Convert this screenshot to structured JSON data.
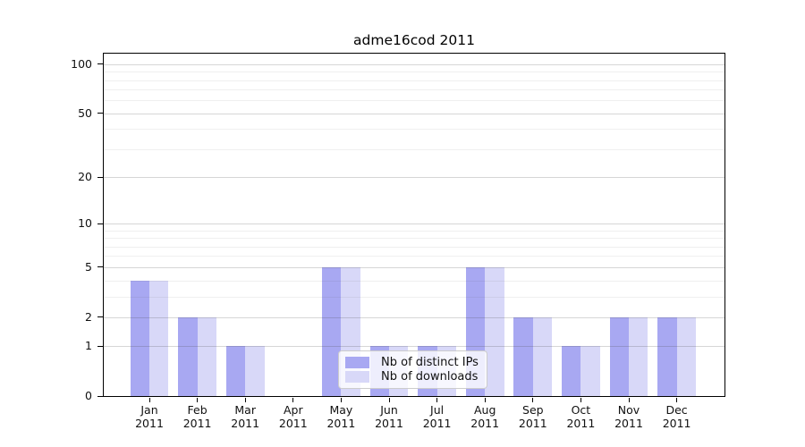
{
  "chart_data": {
    "type": "bar",
    "title": "adme16cod 2011",
    "categories": [
      "Jan",
      "Feb",
      "Mar",
      "Apr",
      "May",
      "Jun",
      "Jul",
      "Aug",
      "Sep",
      "Oct",
      "Nov",
      "Dec"
    ],
    "x_tick_second_line": "2011",
    "series": [
      {
        "name": "Nb of distinct IPs",
        "color": "#a8a8f2",
        "values": [
          4,
          2,
          1,
          0,
          5,
          1,
          1,
          5,
          2,
          1,
          2,
          2
        ]
      },
      {
        "name": "Nb of downloads",
        "color": "#d8d8f8",
        "values": [
          4,
          2,
          1,
          0,
          5,
          1,
          1,
          5,
          2,
          1,
          2,
          2
        ]
      }
    ],
    "yscale": "log1p",
    "ylim": [
      0,
      116
    ],
    "y_major_ticks": [
      0,
      1,
      2,
      5,
      10,
      20,
      50,
      100
    ],
    "y_minor_gridlines": [
      3,
      4,
      6,
      7,
      8,
      9,
      30,
      40,
      60,
      70,
      80,
      90
    ],
    "grid": true,
    "legend_position": "lower center",
    "xlabel": "",
    "ylabel": ""
  }
}
